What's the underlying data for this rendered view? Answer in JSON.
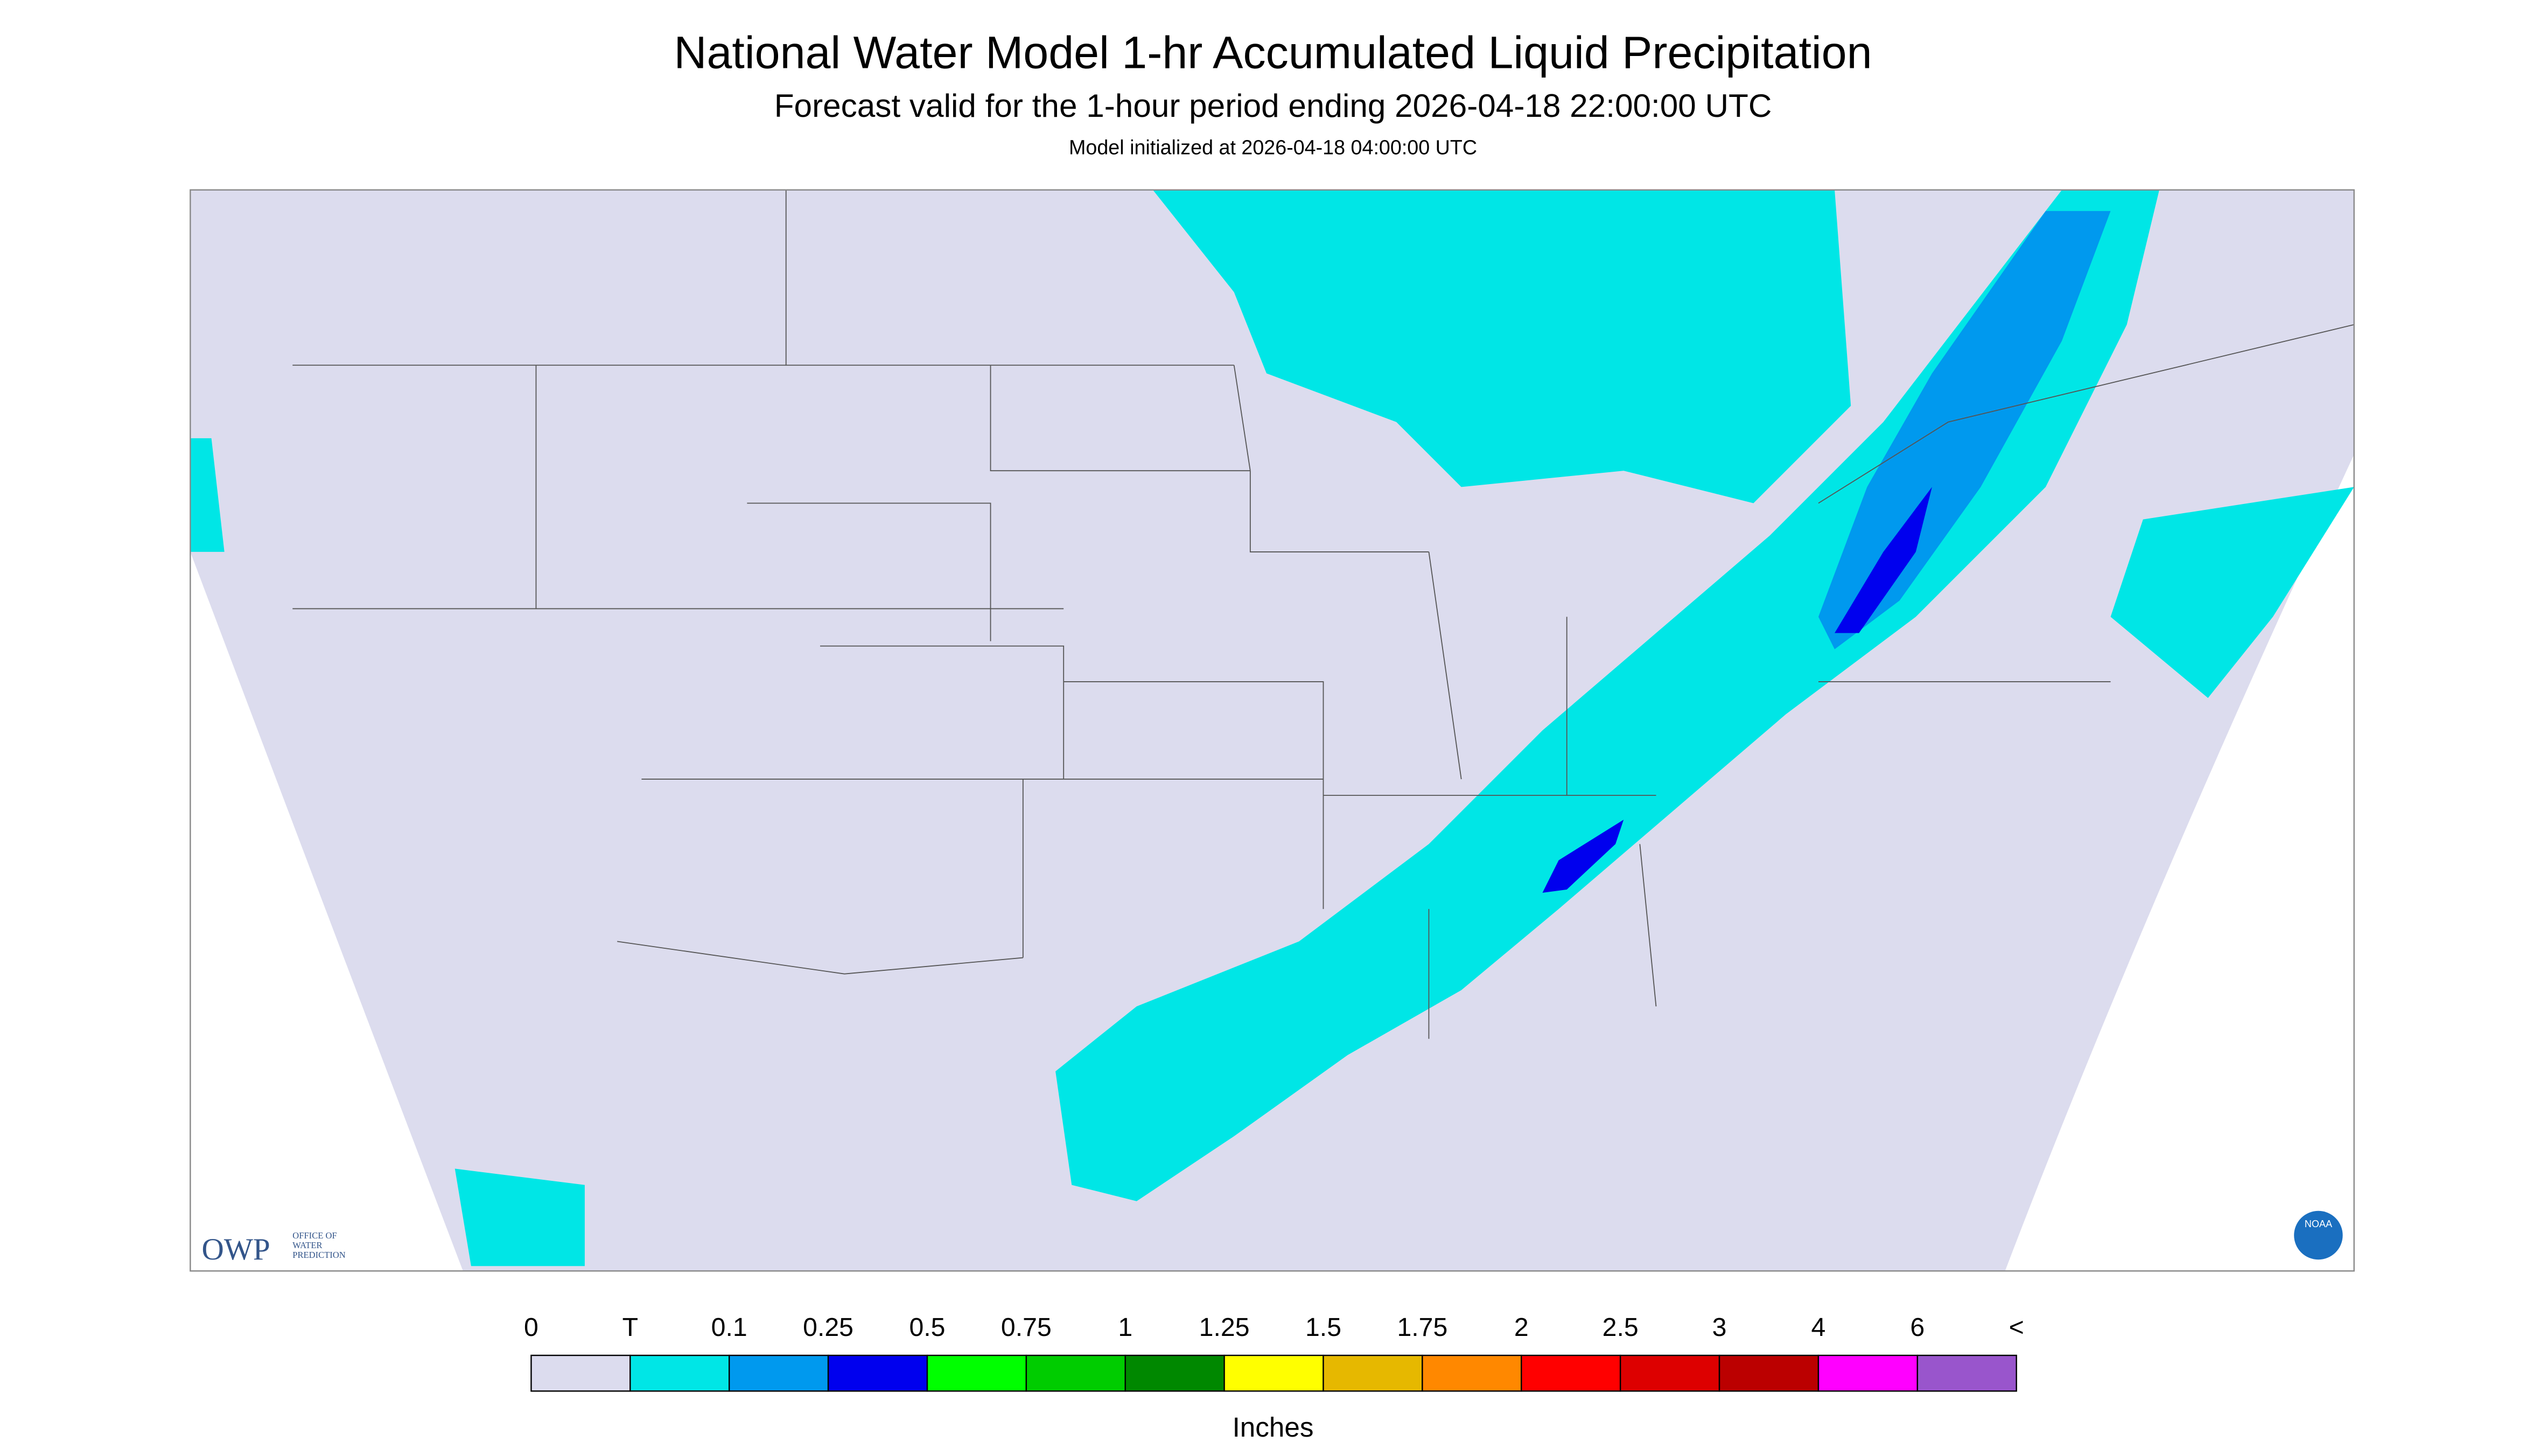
{
  "header": {
    "title": "National Water Model 1-hr Accumulated Liquid Precipitation",
    "subtitle": "Forecast valid for the 1-hour period ending 2026-04-18 22:00:00 UTC",
    "init": "Model initialized at 2026-04-18 04:00:00 UTC"
  },
  "logos": {
    "owp": "OWP",
    "owp_name": [
      "OFFICE OF",
      "WATER",
      "PREDICTION"
    ],
    "noaa": "NOAA"
  },
  "legend": {
    "labels": [
      "0",
      "T",
      "0.1",
      "0.25",
      "0.5",
      "0.75",
      "1",
      "1.25",
      "1.5",
      "1.75",
      "2",
      "2.5",
      "3",
      "4",
      "6",
      "<"
    ],
    "colors": [
      "#dcdcee",
      "#00e6e6",
      "#0099ee",
      "#0000ee",
      "#00ff00",
      "#00cc00",
      "#008800",
      "#ffff00",
      "#e6b800",
      "#ff8800",
      "#ff0000",
      "#dd0000",
      "#bb0000",
      "#ff00ff",
      "#9955cc"
    ],
    "unit": "Inches"
  }
}
